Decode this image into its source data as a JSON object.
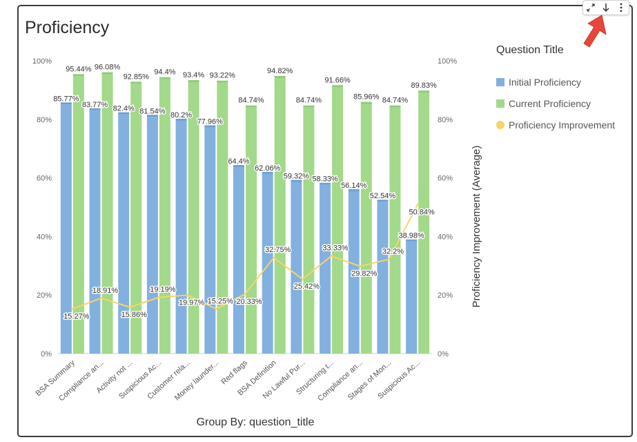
{
  "header": {
    "title": "Proficiency"
  },
  "toolbar": {
    "expand_icon": "expand-icon",
    "download_icon": "download-icon",
    "more_icon": "more-vertical-icon"
  },
  "legend": {
    "title": "Question Title",
    "items": [
      {
        "label": "Initial Proficiency",
        "color": "#82b1e0",
        "shape": "square"
      },
      {
        "label": "Current Proficiency",
        "color": "#a3d98a",
        "shape": "square"
      },
      {
        "label": "Proficiency Improvement",
        "color": "#f7d564",
        "shape": "circle"
      }
    ]
  },
  "chart_data": {
    "type": "bar",
    "xlabel": "Group By: question_title",
    "ylabel_right": "Proficiency Improvement (Average)",
    "ylim": [
      0,
      100
    ],
    "y_ticks": [
      "0%",
      "20%",
      "40%",
      "60%",
      "80%",
      "100%"
    ],
    "categories": [
      "BSA Summary",
      "Compliance an...",
      "Activity not ...",
      "Suspicious Ac...",
      "Customer rela...",
      "Money launder...",
      "Red flags",
      "BSA Definition",
      "No Lawful Pur...",
      "Structuring t...",
      "Compliance an...",
      "Stages of Mon...",
      "Suspicious Ac..."
    ],
    "series": [
      {
        "name": "Initial Proficiency",
        "type": "bar",
        "color": "#82b1e0",
        "values": [
          85.77,
          83.77,
          82.4,
          81.54,
          80.2,
          77.96,
          64.4,
          62.06,
          59.32,
          58.33,
          56.14,
          52.54,
          38.98
        ],
        "labels": [
          "85.77%",
          "83.77%",
          "82.4%",
          "81.54%",
          "80.2%",
          "77.96%",
          "64.4%",
          "62.06%",
          "59.32%",
          "58.33%",
          "56.14%",
          "52.54%",
          "38.98%"
        ]
      },
      {
        "name": "Current Proficiency",
        "type": "bar",
        "color": "#a3d98a",
        "values": [
          95.44,
          96.08,
          92.85,
          94.4,
          93.4,
          93.22,
          84.74,
          94.82,
          84.74,
          91.66,
          85.96,
          84.74,
          89.83
        ],
        "labels": [
          "95.44%",
          "96.08%",
          "92.85%",
          "94.4%",
          "93.4%",
          "93.22%",
          "84.74%",
          "94.82%",
          "84.74%",
          "91.66%",
          "85.96%",
          "84.74%",
          "89.83%"
        ]
      },
      {
        "name": "Proficiency Improvement",
        "type": "line",
        "color": "#f7d564",
        "values": [
          15.27,
          18.91,
          15.86,
          19.19,
          19.97,
          15.25,
          20.33,
          32.75,
          25.42,
          33.33,
          29.82,
          32.2,
          50.84
        ],
        "labels": [
          "15.27%",
          "18.91%",
          "15.86%",
          "19.19%",
          "19.97%",
          "15.25%",
          "20.33%",
          "32.75%",
          "25.42%",
          "33.33%",
          "29.82%",
          "32.2%",
          "50.84%"
        ]
      }
    ]
  }
}
